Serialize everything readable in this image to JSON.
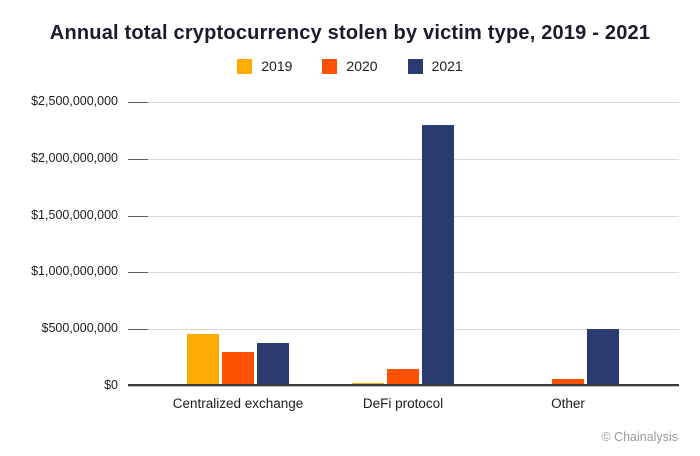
{
  "title": "Annual total cryptocurrency stolen by victim type, 2019 - 2021",
  "attribution": "© Chainalysis",
  "legend": {
    "items": [
      {
        "label": "2019",
        "color": "#FCAC03"
      },
      {
        "label": "2020",
        "color": "#FF5200"
      },
      {
        "label": "2021",
        "color": "#2B3A6F"
      }
    ]
  },
  "colors": {
    "background": "#ffffff",
    "title_text": "#1b1b2b",
    "gridline": "#d9d9d9",
    "axis_line": "#3a3a3a",
    "label_text": "#1d1d1d",
    "attribution_text": "#9a9a9a",
    "series_2019": "#FCAC03",
    "series_2020": "#FF5200",
    "series_2021": "#2B3A6F"
  },
  "chart_data": {
    "type": "bar",
    "title": "Annual total cryptocurrency stolen by victim type, 2019 - 2021",
    "categories": [
      "Centralized exchange",
      "DeFi protocol",
      "Other"
    ],
    "series": [
      {
        "name": "2019",
        "color": "#FCAC03",
        "values": [
          460000000,
          30000000,
          20000000
        ]
      },
      {
        "name": "2020",
        "color": "#FF5200",
        "values": [
          300000000,
          150000000,
          60000000
        ]
      },
      {
        "name": "2021",
        "color": "#2B3A6F",
        "values": [
          380000000,
          2300000000,
          500000000
        ]
      }
    ],
    "xlabel": "",
    "ylabel": "",
    "ylim": [
      0,
      2500000000
    ],
    "y_ticks": [
      0,
      500000000,
      1000000000,
      1500000000,
      2000000000,
      2500000000
    ],
    "y_tick_labels": [
      "$0",
      "$500,000,000",
      "$1,000,000,000",
      "$1,500,000,000",
      "$2,000,000,000",
      "$2,500,000,000"
    ],
    "grid": "horizontal",
    "legend_position": "top",
    "attribution": "© Chainalysis"
  }
}
